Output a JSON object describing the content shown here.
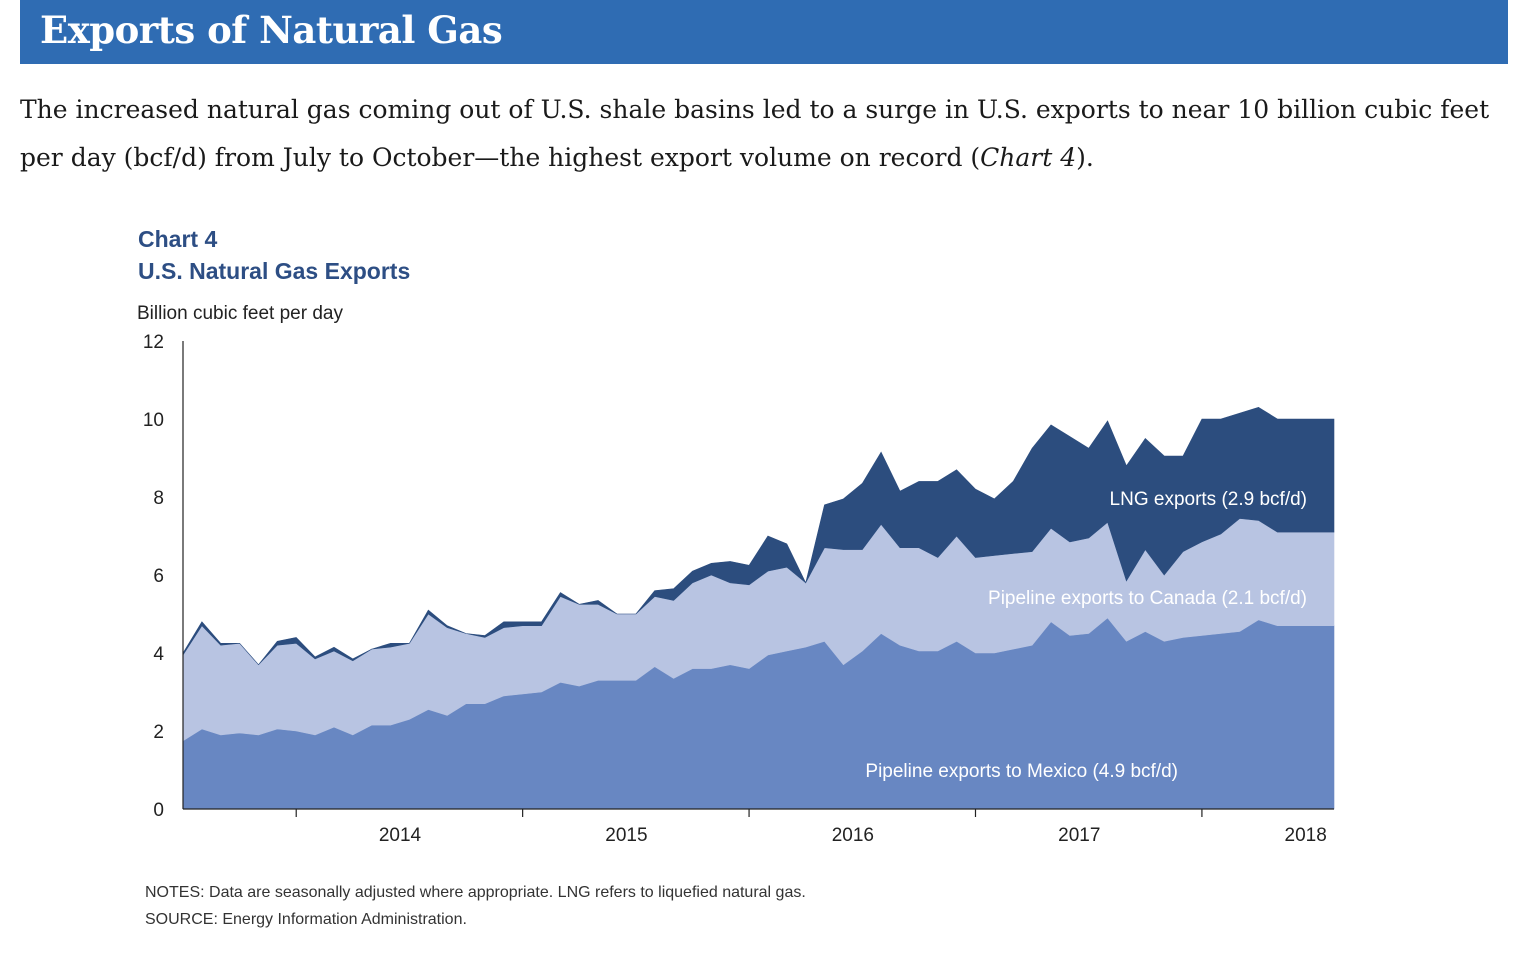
{
  "header": {
    "title": "Exports of Natural Gas"
  },
  "intro": {
    "text_before": "The increased natural gas coming out of U.S. shale basins led to a surge in U.S. exports to near 10 billion cubic feet per day (bcf/d) from July to October—the highest export volume on record (",
    "chart_ref": "Chart 4",
    "text_after": ")."
  },
  "notes": "NOTES: Data are seasonally adjusted where appropriate. LNG refers to liquefied natural gas.",
  "source": "SOURCE: Energy Information Administration.",
  "colors": {
    "banner": "#2f6cb3",
    "mexico": "#6887c2",
    "canada": "#b8c4e2",
    "lng": "#2c4d7e",
    "title": "#2d4e84"
  },
  "chart_data": {
    "type": "area",
    "stacked": true,
    "label": "Chart 4",
    "title": "U.S. Natural Gas Exports",
    "ylabel": "Billion cubic feet per day",
    "ylim": [
      0,
      12
    ],
    "yticks": [
      0,
      2,
      4,
      6,
      8,
      10,
      12
    ],
    "xrange": [
      "2013-07",
      "2018-10"
    ],
    "xticks": [
      "2014",
      "2015",
      "2016",
      "2017",
      "2018"
    ],
    "x": [
      "2013-07",
      "2013-08",
      "2013-09",
      "2013-10",
      "2013-11",
      "2013-12",
      "2014-01",
      "2014-02",
      "2014-03",
      "2014-04",
      "2014-05",
      "2014-06",
      "2014-07",
      "2014-08",
      "2014-09",
      "2014-10",
      "2014-11",
      "2014-12",
      "2015-01",
      "2015-02",
      "2015-03",
      "2015-04",
      "2015-05",
      "2015-06",
      "2015-07",
      "2015-08",
      "2015-09",
      "2015-10",
      "2015-11",
      "2015-12",
      "2016-01",
      "2016-02",
      "2016-03",
      "2016-04",
      "2016-05",
      "2016-06",
      "2016-07",
      "2016-08",
      "2016-09",
      "2016-10",
      "2016-11",
      "2016-12",
      "2017-01",
      "2017-02",
      "2017-03",
      "2017-04",
      "2017-05",
      "2017-06",
      "2017-07",
      "2017-08",
      "2017-09",
      "2017-10",
      "2017-11",
      "2017-12",
      "2018-01",
      "2018-02",
      "2018-03",
      "2018-04",
      "2018-05",
      "2018-06",
      "2018-07",
      "2018-08"
    ],
    "series": [
      {
        "name": "Pipeline exports to Mexico (4.9 bcf/d)",
        "values": [
          1.75,
          2.05,
          1.9,
          1.95,
          1.9,
          2.05,
          2.0,
          1.9,
          2.1,
          1.9,
          2.15,
          2.15,
          2.3,
          2.55,
          2.4,
          2.7,
          2.7,
          2.9,
          2.95,
          3.0,
          3.25,
          3.15,
          3.3,
          3.3,
          3.3,
          3.65,
          3.35,
          3.6,
          3.6,
          3.7,
          3.6,
          3.95,
          4.05,
          4.15,
          4.3,
          3.7,
          4.05,
          4.5,
          4.2,
          4.05,
          4.05,
          4.3,
          4.0,
          4.0,
          4.1,
          4.2,
          4.8,
          4.45,
          4.5,
          4.9,
          4.3,
          4.55,
          4.3,
          4.4,
          4.45,
          4.5,
          4.55,
          4.85,
          4.7,
          4.7,
          4.7,
          4.7
        ]
      },
      {
        "name": "Pipeline exports to Canada (2.1 bcf/d)",
        "values": [
          2.2,
          2.65,
          2.3,
          2.3,
          1.8,
          2.15,
          2.25,
          1.95,
          1.95,
          1.9,
          1.95,
          2.0,
          1.95,
          2.45,
          2.25,
          1.8,
          1.7,
          1.75,
          1.75,
          1.7,
          2.2,
          2.1,
          1.95,
          1.7,
          1.7,
          1.8,
          2.0,
          2.2,
          2.4,
          2.1,
          2.15,
          2.15,
          2.15,
          1.65,
          2.4,
          2.95,
          2.6,
          2.8,
          2.5,
          2.65,
          2.4,
          2.7,
          2.45,
          2.5,
          2.45,
          2.4,
          2.4,
          2.4,
          2.45,
          2.45,
          1.55,
          2.1,
          1.7,
          2.2,
          2.4,
          2.55,
          2.9,
          2.55,
          2.4,
          2.4,
          2.4,
          2.4
        ]
      },
      {
        "name": "LNG exports (2.9 bcf/d)",
        "values": [
          0.05,
          0.1,
          0.05,
          0.0,
          0.0,
          0.1,
          0.15,
          0.05,
          0.1,
          0.05,
          0.0,
          0.1,
          0.0,
          0.1,
          0.05,
          0.0,
          0.05,
          0.15,
          0.1,
          0.1,
          0.1,
          0.0,
          0.1,
          0.0,
          0.0,
          0.15,
          0.3,
          0.3,
          0.3,
          0.55,
          0.5,
          0.9,
          0.6,
          0.0,
          1.1,
          1.3,
          1.7,
          1.85,
          1.45,
          1.7,
          1.95,
          1.7,
          1.75,
          1.45,
          1.85,
          2.65,
          2.65,
          2.7,
          2.3,
          2.6,
          2.95,
          2.85,
          3.05,
          2.45,
          3.15,
          2.95,
          2.7,
          2.9,
          2.9,
          2.9,
          2.9,
          2.9
        ]
      }
    ]
  }
}
